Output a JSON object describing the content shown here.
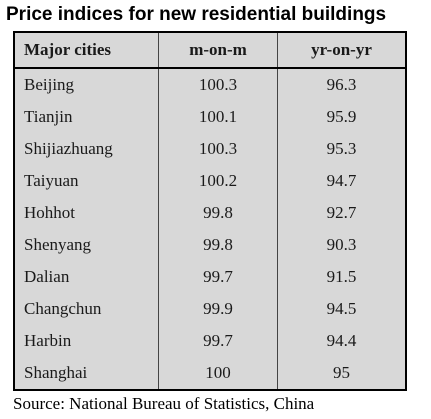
{
  "chart_data": {
    "type": "table",
    "title": "Price indices for new residential buildings",
    "columns": [
      "Major cities",
      "m-on-m",
      "yr-on-yr"
    ],
    "rows": [
      {
        "city": "Beijing",
        "m_on_m": "100.3",
        "yr_on_yr": "96.3"
      },
      {
        "city": "Tianjin",
        "m_on_m": "100.1",
        "yr_on_yr": "95.9"
      },
      {
        "city": "Shijiazhuang",
        "m_on_m": "100.3",
        "yr_on_yr": "95.3"
      },
      {
        "city": "Taiyuan",
        "m_on_m": "100.2",
        "yr_on_yr": "94.7"
      },
      {
        "city": "Hohhot",
        "m_on_m": "99.8",
        "yr_on_yr": "92.7"
      },
      {
        "city": "Shenyang",
        "m_on_m": "99.8",
        "yr_on_yr": "90.3"
      },
      {
        "city": "Dalian",
        "m_on_m": "99.7",
        "yr_on_yr": "91.5"
      },
      {
        "city": "Changchun",
        "m_on_m": "99.9",
        "yr_on_yr": "94.5"
      },
      {
        "city": "Harbin",
        "m_on_m": "99.7",
        "yr_on_yr": "94.4"
      },
      {
        "city": "Shanghai",
        "m_on_m": "100",
        "yr_on_yr": "95"
      }
    ],
    "source": "Source: National Bureau of Statistics, China"
  },
  "colors": {
    "table_background": "#d8d8d8",
    "border": "#000000"
  }
}
